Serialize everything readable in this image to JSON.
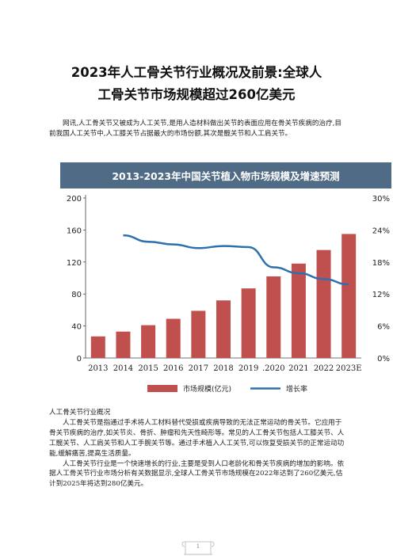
{
  "document": {
    "title_line1": "2023年人工骨关节行业概况及前景:全球人",
    "title_line2": "工骨关节市场规模超过260亿美元",
    "intro": "网讯,人工骨关节又被成为人工关节,是用人造材料做出关节的表面应用在骨关节疾病的治疗,目前我国人工关节中,人工膝关节占据最大的市场份额,其次是髋关节和人工肩关节。",
    "section_heading": "人工骨关节行业概况",
    "paragraph1": "人工骨关节是指通过手术将人工材料替代受损或疾病导致的无法正常运动的骨关节。它应用于骨关节疾病的治疗,如关节炎、骨折、肿瘤和先天性畸形等。常见的人工骨关节包括人工膝关节、人工髋关节、人工肩关节和人工手腕关节等。通过手术植入人工关节,可以恢复受损关节的正常运动功能,缓解痛苦,提高生活质量。",
    "paragraph2": "人工骨关节行业是一个快速增长的行业,主要是受到人口老龄化和骨关节疾病的增加的影响。依据人工骨关节行业市场分析有关数据显示,全球人工骨关节市场规模在2022年达到了260亿美元,估计到2025年将达到280亿美元。",
    "page_number": "1"
  },
  "chart_data": {
    "type": "bar",
    "title": "2013-2023年中国关节植入物市场规模及增速预测",
    "categories": [
      "2013",
      "2014",
      "2015",
      "2016",
      "2017",
      "2018",
      "2019",
      ".2020",
      "2021",
      "2022",
      "2023E"
    ],
    "series": [
      {
        "name": "市场规模(亿元)",
        "axis": "left",
        "values": [
          27,
          33,
          41,
          49,
          59,
          72,
          87,
          102,
          118,
          135,
          155
        ]
      },
      {
        "name": "增长率",
        "axis": "right",
        "unit": "%",
        "values": [
          null,
          23.0,
          21.8,
          21.3,
          20.6,
          21.0,
          20.8,
          17.0,
          15.9,
          14.8,
          13.8
        ]
      }
    ],
    "ylim": [
      0,
      200
    ],
    "y_ticks": [
      "0",
      "40",
      "80",
      "120",
      "160",
      "200"
    ],
    "y2lim": [
      0,
      30
    ],
    "y2_ticks": [
      "0%",
      "6%",
      "12%",
      "18%",
      "24%",
      "30%"
    ],
    "legend_position": "bottom",
    "colors": {
      "bar": "#c0504d",
      "line": "#2e6fad",
      "title_bg": "#4f6b85",
      "title_text": "#ffffff"
    }
  }
}
